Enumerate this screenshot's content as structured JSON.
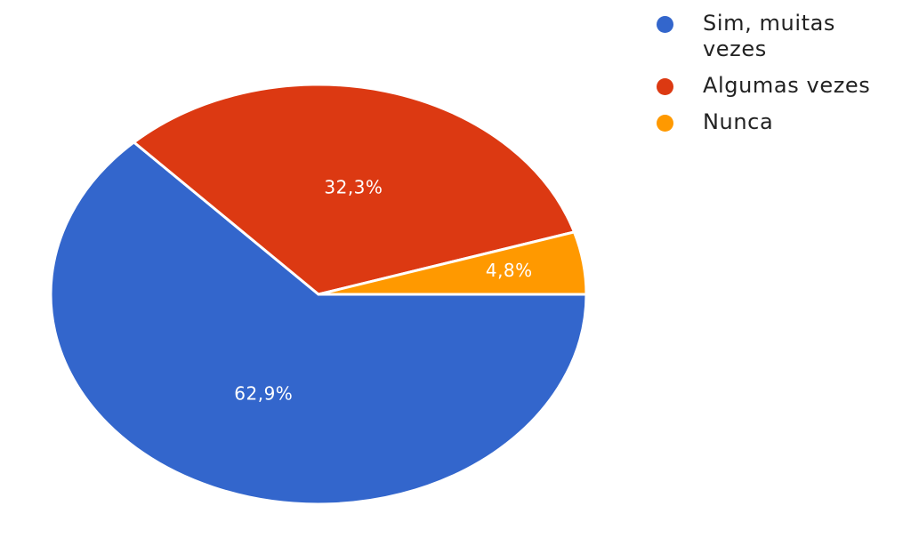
{
  "chart_data": {
    "type": "pie",
    "title": "",
    "slices": [
      {
        "label": "Sim, muitas vezes",
        "value": 62.9,
        "display": "62,9%",
        "color": "#3366CC"
      },
      {
        "label": "Algumas vezes",
        "value": 32.3,
        "display": "32,3%",
        "color": "#DC3912"
      },
      {
        "label": "Nunca",
        "value": 4.8,
        "display": "4,8%",
        "color": "#FF9900"
      }
    ],
    "legend_position": "top-right"
  }
}
